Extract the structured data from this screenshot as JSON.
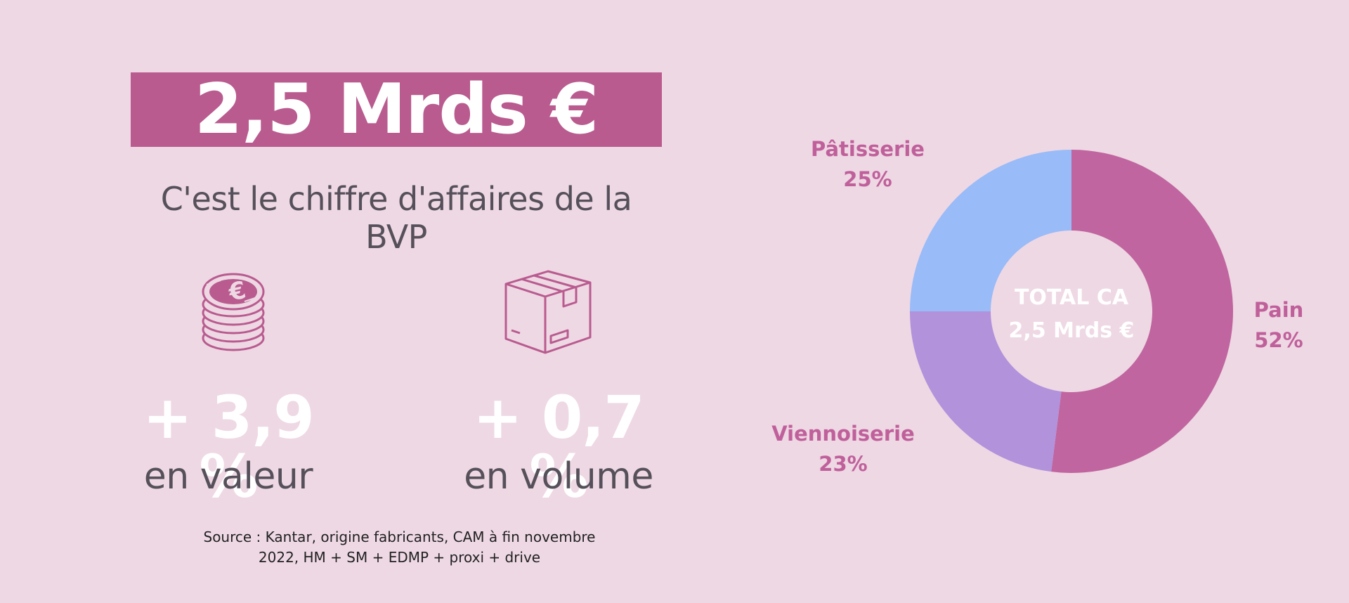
{
  "headline": {
    "value": "2,5 Mrds €",
    "subtitle": "C'est le chiffre d'affaires de la BVP"
  },
  "stats": [
    {
      "icon": "coins-euro-icon",
      "value": "+ 3,9 %",
      "label": "en valeur"
    },
    {
      "icon": "box-icon",
      "value": "+ 0,7 %",
      "label": "en volume"
    }
  ],
  "source": {
    "line1": "Source : Kantar, origine fabricants, CAM à fin novembre",
    "line2": "2022, HM + SM + EDMP + proxi + drive"
  },
  "colors": {
    "background": "#eed8e4",
    "banner": "#b95b8f",
    "accent_text": "#c0609b",
    "pain": "#c0659f",
    "viennoiserie": "#b192db",
    "patisserie": "#99bbf8"
  },
  "chart_data": {
    "type": "pie",
    "donut": true,
    "center_text": [
      "TOTAL CA",
      "2,5 Mrds €"
    ],
    "slices": [
      {
        "name": "Pain",
        "value": 52,
        "label": "52%"
      },
      {
        "name": "Viennoiserie",
        "value": 23,
        "label": "23%"
      },
      {
        "name": "Pâtisserie",
        "value": 25,
        "label": "25%"
      }
    ]
  }
}
